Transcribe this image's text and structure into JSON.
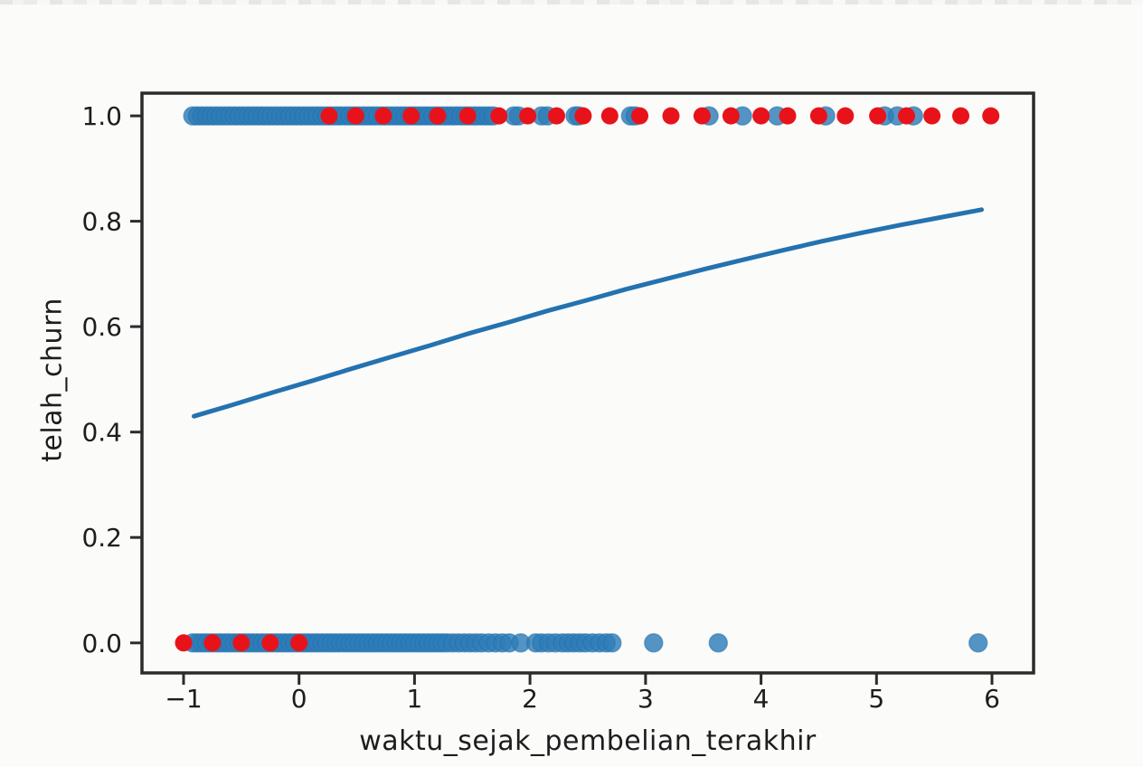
{
  "page": {
    "background": "#fbfbfa"
  },
  "chart_data": {
    "type": "scatter",
    "title": "",
    "xlabel": "waktu_sejak_pembelian_terakhir",
    "ylabel": "telah_churn",
    "xlim": [
      -1.36,
      6.36
    ],
    "ylim": [
      -0.057,
      1.043
    ],
    "x_ticks": [
      -1,
      0,
      1,
      2,
      3,
      4,
      5,
      6
    ],
    "x_tick_labels": [
      "−1",
      "0",
      "1",
      "2",
      "3",
      "4",
      "5",
      "6"
    ],
    "y_ticks": [
      0.0,
      0.2,
      0.4,
      0.6,
      0.8,
      1.0
    ],
    "y_tick_labels": [
      "0.0",
      "0.2",
      "0.4",
      "0.6",
      "0.8",
      "1.0"
    ],
    "grid": false,
    "legend": null,
    "colors": {
      "scatter_blue": "#2e7cb8",
      "scatter_blue_edge": "#2271ab",
      "scatter_red": "#e8131a",
      "curve_blue": "#2472b0",
      "axis": "#2b2b2b",
      "text": "#1d1d1d"
    },
    "series": [
      {
        "name": "churn-1-observations-blue",
        "kind": "scatter",
        "color_key": "scatter_blue",
        "y": 1.0,
        "x": [
          -0.92,
          -0.88,
          -0.84,
          -0.8,
          -0.76,
          -0.72,
          -0.68,
          -0.64,
          -0.6,
          -0.56,
          -0.52,
          -0.48,
          -0.44,
          -0.4,
          -0.36,
          -0.32,
          -0.28,
          -0.24,
          -0.2,
          -0.16,
          -0.12,
          -0.08,
          -0.04,
          0,
          0.04,
          0.08,
          0.12,
          0.16,
          0.2,
          0.24,
          0.28,
          0.32,
          0.36,
          0.4,
          0.44,
          0.48,
          0.52,
          0.56,
          0.6,
          0.64,
          0.68,
          0.72,
          0.76,
          0.8,
          0.84,
          0.88,
          0.92,
          0.96,
          1,
          1.04,
          1.08,
          1.12,
          1.16,
          1.2,
          1.24,
          1.28,
          1.32,
          1.36,
          1.4,
          1.44,
          1.48,
          1.52,
          1.56,
          1.6,
          1.64,
          1.68,
          1.86,
          1.9,
          2.1,
          2.15,
          2.39,
          2.42,
          2.87,
          2.91,
          3.55,
          3.84,
          4.14,
          4.56,
          5.07,
          5.18,
          5.32
        ]
      },
      {
        "name": "churn-0-observations-blue",
        "kind": "scatter",
        "color_key": "scatter_blue",
        "y": 0.0,
        "x": [
          -0.92,
          -0.88,
          -0.84,
          -0.8,
          -0.76,
          -0.72,
          -0.68,
          -0.64,
          -0.6,
          -0.56,
          -0.52,
          -0.48,
          -0.44,
          -0.4,
          -0.36,
          -0.32,
          -0.28,
          -0.24,
          -0.2,
          -0.16,
          -0.12,
          -0.08,
          -0.04,
          0,
          0.04,
          0.08,
          0.12,
          0.16,
          0.2,
          0.24,
          0.28,
          0.32,
          0.36,
          0.4,
          0.44,
          0.48,
          0.52,
          0.56,
          0.6,
          0.64,
          0.68,
          0.72,
          0.76,
          0.8,
          0.84,
          0.88,
          0.92,
          0.96,
          1,
          1.04,
          1.08,
          1.12,
          1.16,
          1.2,
          1.24,
          1.28,
          1.33,
          1.38,
          1.43,
          1.48,
          1.53,
          1.58,
          1.64,
          1.7,
          1.76,
          1.82,
          1.92,
          2.05,
          2.1,
          2.16,
          2.22,
          2.28,
          2.33,
          2.38,
          2.43,
          2.48,
          2.54,
          2.6,
          2.66,
          2.71,
          3.07,
          3.63,
          5.88
        ]
      },
      {
        "name": "churn-1-highlight-red",
        "kind": "scatter",
        "color_key": "scatter_red",
        "y": 1.0,
        "x": [
          0.26,
          0.49,
          0.73,
          0.97,
          1.2,
          1.46,
          1.73,
          1.98,
          2.23,
          2.46,
          2.69,
          2.95,
          3.22,
          3.49,
          3.74,
          4.0,
          4.23,
          4.5,
          4.73,
          5.01,
          5.26,
          5.48,
          5.73,
          5.99
        ]
      },
      {
        "name": "churn-0-highlight-red",
        "kind": "scatter",
        "color_key": "scatter_red",
        "y": 0.0,
        "x": [
          -1.0,
          -0.75,
          -0.5,
          -0.25,
          0.0
        ]
      },
      {
        "name": "logistic-regression-curve",
        "kind": "line",
        "color_key": "curve_blue",
        "points": [
          [
            -0.91,
            0.43
          ],
          [
            -0.57,
            0.452
          ],
          [
            -0.23,
            0.475
          ],
          [
            0.11,
            0.497
          ],
          [
            0.45,
            0.52
          ],
          [
            0.79,
            0.542
          ],
          [
            1.13,
            0.564
          ],
          [
            1.47,
            0.587
          ],
          [
            1.81,
            0.608
          ],
          [
            2.15,
            0.63
          ],
          [
            2.49,
            0.65
          ],
          [
            2.83,
            0.671
          ],
          [
            3.17,
            0.69
          ],
          [
            3.51,
            0.709
          ],
          [
            3.85,
            0.727
          ],
          [
            4.19,
            0.745
          ],
          [
            4.53,
            0.762
          ],
          [
            4.87,
            0.778
          ],
          [
            5.21,
            0.793
          ],
          [
            5.55,
            0.807
          ],
          [
            5.91,
            0.822
          ]
        ]
      }
    ]
  }
}
